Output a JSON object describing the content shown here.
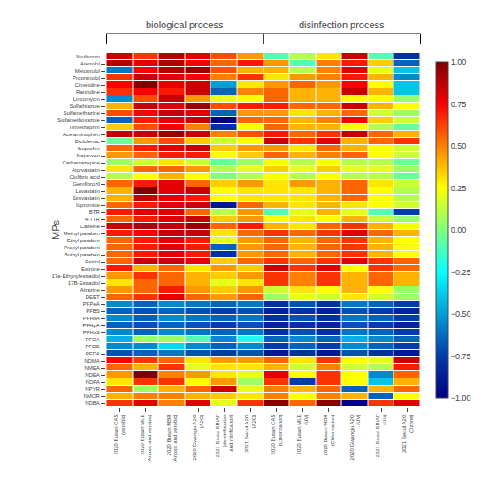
{
  "chart_data": {
    "type": "heatmap",
    "ylabel": "MPs",
    "rows": [
      "Metformin",
      "Atenolol",
      "Metoprolol",
      "Propranolol",
      "Cimetidine",
      "Ranitidine",
      "Lincomycin",
      "Sulfathiazole",
      "Sulfamethazine",
      "Sulfamethoxazole",
      "Trimethoprim",
      "Acetaminophen",
      "Diclofenac",
      "Ibuprofen",
      "Naproxen",
      "Carbamazepine",
      "Atorvastatin",
      "Clofibric acid",
      "Gemfibrozil",
      "Lovastatin",
      "Simvastatin",
      "Iopromide",
      "BTR",
      "4-TTR",
      "Caffeine",
      "Methyl paraben",
      "Ethyl paraben",
      "Propyl paraben",
      "Buthyl paraben",
      "Estriol",
      "Estrone",
      "17a-Ethynylestradiol",
      "17B-Estradiol",
      "Atrazine",
      "DEET",
      "PFPeA",
      "PFBS",
      "PFHxA",
      "PFHpA",
      "PFHxS",
      "PFOA",
      "PFOS",
      "PFDA",
      "NDMA",
      "NMEA",
      "NDEA",
      "NDPA",
      "NPYR",
      "NMOR",
      "NDBA"
    ],
    "columns": [
      "2020 Busan CAS\n(aerobic)",
      "2020 Busan MLE\n(Anoxic and aerobic)",
      "2020 Busan MBR\n(Anoxic and aerobic)",
      "2020 Gwangju A2O\n(A2O)",
      "2021 Seoul SBiAF\n(denitrification\nand nitrification)",
      "2021 Seoul A2O\n(A2O)",
      "2020 Busan CAS\n(Chlorination)",
      "2020 Busan MLE\n(UV)",
      "2020 Busan MBR\n(Chlorination)",
      "2020 Gwangju A2O\n(UV)",
      "2021 Seoul SBiAF\n(UV)",
      "2021 Seoul A2O\n(Ozone)"
    ],
    "values": [
      [
        0.85,
        0.65,
        0.9,
        0.8,
        0.6,
        0.45,
        -0.1,
        0.1,
        0.3,
        0.85,
        -0.1,
        -0.8
      ],
      [
        0.9,
        0.8,
        0.9,
        0.75,
        0.55,
        0.7,
        0.45,
        -0.1,
        0.5,
        0.7,
        0.35,
        -0.65
      ],
      [
        -0.6,
        0.75,
        0.9,
        0.95,
        0.6,
        0.4,
        0.4,
        0.1,
        0.5,
        0.8,
        0.2,
        -0.4
      ],
      [
        0.65,
        0.85,
        0.8,
        0.75,
        0.5,
        0.65,
        0.3,
        0.45,
        0.5,
        0.7,
        0.4,
        -0.55
      ],
      [
        0.75,
        1.0,
        0.8,
        0.85,
        -0.5,
        0.3,
        0.45,
        0.55,
        0.45,
        0.75,
        0.25,
        -0.4
      ],
      [
        0.65,
        0.75,
        0.7,
        0.85,
        -0.65,
        0.5,
        0.55,
        0.4,
        0.4,
        0.85,
        0.4,
        -0.4
      ],
      [
        -0.55,
        0.6,
        0.85,
        0.45,
        0.2,
        0.25,
        0.55,
        0.4,
        0.4,
        0.25,
        0.25,
        0.05
      ],
      [
        0.4,
        0.85,
        0.8,
        0.95,
        0.6,
        0.7,
        0.7,
        0.55,
        0.55,
        0.85,
        0.4,
        0.25
      ],
      [
        0.6,
        0.75,
        0.85,
        0.8,
        -0.65,
        0.45,
        0.45,
        0.3,
        0.4,
        0.55,
        0.15,
        0.05
      ],
      [
        -0.65,
        0.7,
        0.8,
        0.85,
        -1.0,
        0.55,
        0.55,
        0.4,
        0.5,
        0.75,
        0.35,
        0.15
      ],
      [
        0.35,
        0.6,
        0.75,
        0.5,
        -0.8,
        0.25,
        0.55,
        0.4,
        0.4,
        0.25,
        0.1,
        -0.05
      ],
      [
        0.85,
        0.85,
        0.95,
        0.85,
        0.5,
        0.6,
        0.7,
        0.55,
        0.65,
        0.85,
        0.55,
        0.4
      ],
      [
        -0.05,
        0.45,
        0.6,
        0.35,
        0.15,
        0.25,
        0.85,
        0.65,
        0.8,
        0.4,
        0.55,
        0.65
      ],
      [
        0.55,
        0.7,
        0.8,
        0.85,
        0.35,
        0.45,
        0.45,
        0.3,
        0.55,
        0.4,
        0.25,
        0.15
      ],
      [
        0.45,
        0.55,
        0.7,
        0.7,
        0.25,
        0.35,
        0.55,
        0.4,
        0.5,
        0.55,
        0.25,
        0.15
      ],
      [
        0.05,
        0.15,
        0.3,
        0.15,
        -0.05,
        0.05,
        0.25,
        0.1,
        0.25,
        0.1,
        0.1,
        -0.05
      ],
      [
        0.3,
        0.55,
        0.55,
        0.45,
        0.1,
        0.2,
        0.35,
        0.2,
        0.35,
        0.2,
        0.2,
        0.05
      ],
      [
        0.1,
        0.25,
        0.4,
        0.25,
        0.0,
        0.1,
        0.25,
        0.1,
        0.25,
        0.1,
        0.1,
        -0.05
      ],
      [
        0.55,
        0.7,
        0.8,
        0.55,
        0.35,
        0.45,
        0.3,
        0.45,
        0.4,
        0.55,
        0.3,
        0.15
      ],
      [
        0.4,
        1.0,
        0.8,
        0.85,
        0.25,
        0.3,
        0.3,
        0.3,
        0.4,
        0.55,
        0.25,
        0.1
      ],
      [
        0.4,
        0.85,
        0.8,
        0.7,
        0.25,
        0.3,
        0.3,
        0.3,
        0.4,
        0.55,
        0.25,
        0.1
      ],
      [
        0.55,
        0.7,
        0.8,
        0.85,
        -0.9,
        0.55,
        0.4,
        0.3,
        0.4,
        0.3,
        0.25,
        0.15
      ],
      [
        0.7,
        0.8,
        0.8,
        0.55,
        0.1,
        0.45,
        -0.1,
        0.2,
        0.4,
        0.2,
        -0.1,
        -0.75
      ],
      [
        0.55,
        0.7,
        0.8,
        0.85,
        0.35,
        0.45,
        0.25,
        0.3,
        0.25,
        0.4,
        0.15,
        0.05
      ],
      [
        0.85,
        0.9,
        0.85,
        0.95,
        0.55,
        0.7,
        0.4,
        0.3,
        0.55,
        0.65,
        0.4,
        0.25
      ],
      [
        0.7,
        0.75,
        0.85,
        0.85,
        0.3,
        0.55,
        0.65,
        0.55,
        0.65,
        0.8,
        0.55,
        0.4
      ],
      [
        0.55,
        0.7,
        0.8,
        0.7,
        0.2,
        0.45,
        0.55,
        0.4,
        0.55,
        0.65,
        0.4,
        0.25
      ],
      [
        0.55,
        0.7,
        0.8,
        0.7,
        -0.65,
        0.45,
        0.55,
        0.4,
        0.55,
        0.65,
        0.4,
        0.25
      ],
      [
        0.55,
        0.7,
        0.8,
        0.7,
        -0.8,
        0.45,
        0.55,
        0.4,
        0.55,
        0.65,
        0.4,
        0.25
      ],
      [
        0.55,
        0.85,
        0.85,
        0.8,
        0.35,
        0.55,
        0.65,
        0.55,
        0.65,
        0.8,
        0.65,
        0.55
      ],
      [
        0.7,
        0.4,
        0.55,
        0.3,
        0.45,
        0.35,
        0.85,
        0.65,
        0.8,
        0.25,
        0.65,
        0.55
      ],
      [
        0.45,
        0.65,
        0.55,
        0.4,
        0.35,
        0.45,
        0.65,
        0.5,
        0.65,
        0.4,
        0.55,
        0.4
      ],
      [
        0.3,
        0.55,
        0.55,
        0.4,
        0.2,
        0.3,
        0.65,
        0.5,
        0.65,
        0.4,
        0.55,
        0.4
      ],
      [
        0.45,
        0.55,
        0.7,
        0.45,
        0.35,
        0.45,
        0.15,
        0.3,
        0.25,
        0.4,
        0.25,
        0.05
      ],
      [
        0.55,
        0.65,
        0.8,
        0.55,
        0.45,
        0.55,
        0.05,
        0.2,
        0.15,
        0.3,
        0.15,
        0.05
      ],
      [
        -0.55,
        -0.65,
        -0.55,
        -0.6,
        -0.65,
        -0.6,
        -0.8,
        -0.7,
        -0.8,
        -0.6,
        -0.65,
        -0.75
      ],
      [
        -0.65,
        -0.7,
        -0.65,
        -0.7,
        -0.75,
        -0.7,
        -0.85,
        -0.8,
        -0.85,
        -0.7,
        -0.75,
        -0.85
      ],
      [
        -0.55,
        -0.65,
        -0.55,
        -0.6,
        -0.65,
        -0.6,
        -0.8,
        -0.7,
        -0.8,
        -0.6,
        -0.65,
        -0.75
      ],
      [
        -0.65,
        -0.7,
        -0.65,
        -0.7,
        -0.75,
        -0.7,
        -0.85,
        -0.8,
        -0.85,
        -0.7,
        -0.75,
        -0.85
      ],
      [
        -0.55,
        -0.65,
        -0.55,
        -0.6,
        -0.65,
        -0.6,
        -0.8,
        -0.7,
        -0.8,
        -0.6,
        -0.65,
        -0.75
      ],
      [
        -0.45,
        0.05,
        0.05,
        -0.1,
        -0.55,
        -0.2,
        -0.65,
        -0.55,
        -0.65,
        -0.45,
        -0.55,
        -0.65
      ],
      [
        -0.55,
        -0.55,
        -0.35,
        -0.55,
        -0.65,
        -0.55,
        -0.75,
        -0.65,
        -0.75,
        -0.55,
        -0.65,
        -0.75
      ],
      [
        -0.7,
        -0.65,
        -0.6,
        -0.7,
        -0.75,
        -0.7,
        -0.9,
        -0.8,
        -0.9,
        -0.7,
        -0.8,
        -0.9
      ],
      [
        0.75,
        0.65,
        0.55,
        0.3,
        0.45,
        0.45,
        0.55,
        0.3,
        0.65,
        0.25,
        0.2,
        0.85
      ],
      [
        0.55,
        0.4,
        0.65,
        0.2,
        0.3,
        0.3,
        0.4,
        0.15,
        0.5,
        0.15,
        0.1,
        0.7
      ],
      [
        0.45,
        1.0,
        0.5,
        0.45,
        0.3,
        0.2,
        0.8,
        0.25,
        0.65,
        0.25,
        -0.55,
        0.55
      ],
      [
        0.3,
        0.65,
        0.65,
        0.25,
        0.45,
        0.05,
        0.65,
        -0.75,
        0.65,
        0.25,
        -0.4,
        0.4
      ],
      [
        0.55,
        0.05,
        0.4,
        0.55,
        0.85,
        0.2,
        0.5,
        0.4,
        0.55,
        -0.65,
        0.4,
        0.55
      ],
      [
        0.4,
        0.5,
        0.5,
        0.4,
        0.35,
        0.3,
        0.5,
        0.25,
        0.5,
        0.4,
        -0.65,
        0.25
      ],
      [
        0.65,
        0.8,
        0.5,
        0.8,
        0.2,
        0.65,
        1.0,
        0.55,
        1.0,
        -1.0,
        0.65,
        0.8
      ]
    ],
    "zlim": [
      -1.0,
      1.0
    ],
    "colorbar_ticks": [
      {
        "value": 1.0,
        "label": "1.00"
      },
      {
        "value": 0.75,
        "label": "0.75"
      },
      {
        "value": 0.5,
        "label": "0.50"
      },
      {
        "value": 0.25,
        "label": "0.25"
      },
      {
        "value": 0.0,
        "label": "0.00"
      },
      {
        "value": -0.25,
        "label": "−0.25"
      },
      {
        "value": -0.5,
        "label": "−0.50"
      },
      {
        "value": -0.75,
        "label": "−0.75"
      },
      {
        "value": -1.0,
        "label": "−1.00"
      }
    ],
    "color": "Jet",
    "grid": false,
    "annotations": [
      {
        "text": "biological process",
        "from": 0,
        "to": 5
      },
      {
        "text": "disinfection process",
        "from": 6,
        "to": 11
      }
    ]
  }
}
